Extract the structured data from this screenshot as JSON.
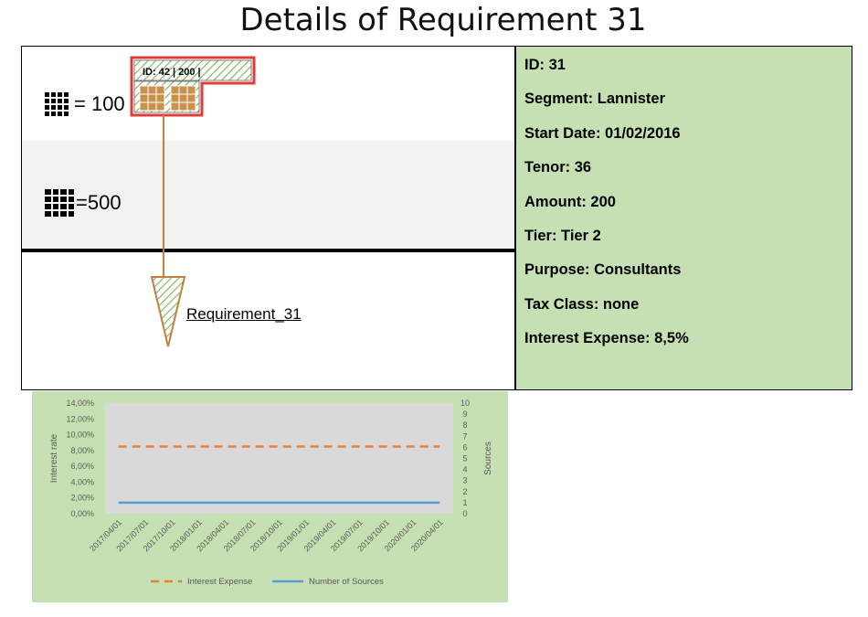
{
  "page_title": "Details of Requirement 31",
  "diagram": {
    "legend_small": "= 100",
    "legend_large": "=500",
    "box_label": "ID: 42  |  200  |",
    "requirement_label": "Requirement_31"
  },
  "details": [
    {
      "label": "ID",
      "value": "31",
      "text": "ID: 31"
    },
    {
      "label": "Segment",
      "value": "Lannister",
      "text": "Segment: Lannister"
    },
    {
      "label": "Start Date",
      "value": "01/02/2016",
      "text": "Start Date: 01/02/2016"
    },
    {
      "label": "Tenor",
      "value": "36",
      "text": "Tenor: 36"
    },
    {
      "label": "Amount",
      "value": "200",
      "text": "Amount: 200"
    },
    {
      "label": "Tier",
      "value": "Tier 2",
      "text": "Tier: Tier 2"
    },
    {
      "label": "Purpose",
      "value": "Consultants",
      "text": "Purpose: Consultants"
    },
    {
      "label": "Tax Class",
      "value": "none",
      "text": "Tax Class: none"
    },
    {
      "label": "Interest Expense",
      "value": "8,5%",
      "text": "Interest Expense: 8,5%"
    }
  ],
  "colors": {
    "panel_green": "#c6e0b4",
    "box_border": "#e03c3c",
    "arrow": "#c08040",
    "interest_line": "#ed7d31",
    "sources_line": "#5b9bd5",
    "plot_bg": "#d9d9d9"
  },
  "chart_data": {
    "type": "line",
    "title": "",
    "xlabel": "",
    "ylabel": "Interest rate",
    "y2label": "Sources",
    "categories": [
      "2017/04/01",
      "2017/07/01",
      "2017/10/01",
      "2018/01/01",
      "2018/04/01",
      "2018/07/01",
      "2018/10/01",
      "2019/01/01",
      "2019/04/01",
      "2019/07/01",
      "2019/10/01",
      "2020/01/01",
      "2020/04/01"
    ],
    "ylim": [
      0,
      14
    ],
    "y2lim": [
      0,
      10
    ],
    "y_ticks": [
      "0,00%",
      "2,00%",
      "4,00%",
      "6,00%",
      "8,00%",
      "10,00%",
      "12,00%",
      "14,00%"
    ],
    "y2_ticks": [
      "0",
      "1",
      "2",
      "3",
      "4",
      "5",
      "6",
      "7",
      "8",
      "9",
      "10"
    ],
    "grid": false,
    "legend_position": "bottom",
    "series": [
      {
        "name": "Interest Expense",
        "axis": "left",
        "style": "dashed",
        "values": [
          8.5,
          8.5,
          8.5,
          8.5,
          8.5,
          8.5,
          8.5,
          8.5,
          8.5,
          8.5,
          8.5,
          8.5,
          8.5
        ]
      },
      {
        "name": "Number of Sources",
        "axis": "right",
        "style": "solid",
        "values": [
          1,
          1,
          1,
          1,
          1,
          1,
          1,
          1,
          1,
          1,
          1,
          1,
          1
        ]
      }
    ]
  }
}
